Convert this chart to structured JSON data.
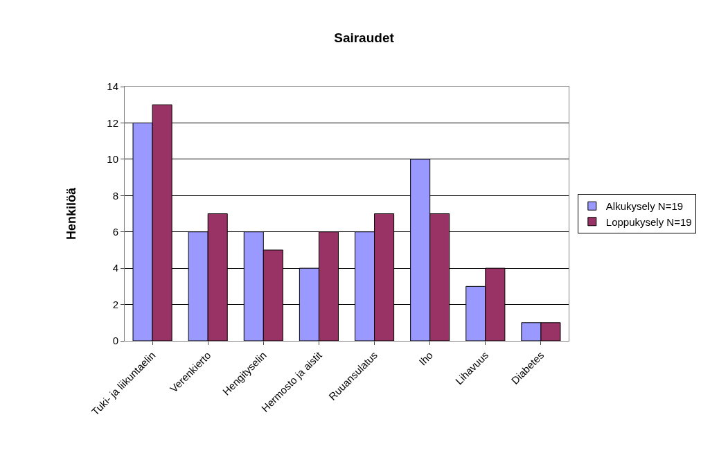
{
  "chart_data": {
    "type": "bar",
    "title": "Sairaudet",
    "ylabel": "Henkilöä",
    "categories": [
      "Tuki- ja liikuntaelin",
      "Verenkierto",
      "Hengityselin",
      "Hermosto ja aistit",
      "Ruuansulatus",
      "Iho",
      "Lihavuus",
      "Diabetes"
    ],
    "series": [
      {
        "name": "Alkukysely N=19",
        "color": "#9999ff",
        "values": [
          12,
          6,
          6,
          4,
          6,
          10,
          3,
          1
        ]
      },
      {
        "name": "Loppukysely N=19",
        "color": "#993366",
        "values": [
          13,
          7,
          5,
          6,
          7,
          7,
          4,
          1
        ]
      }
    ],
    "ylim": [
      0,
      14
    ],
    "yticks": [
      0,
      2,
      4,
      6,
      8,
      10,
      12,
      14
    ],
    "grid": "y",
    "legend": "right"
  }
}
